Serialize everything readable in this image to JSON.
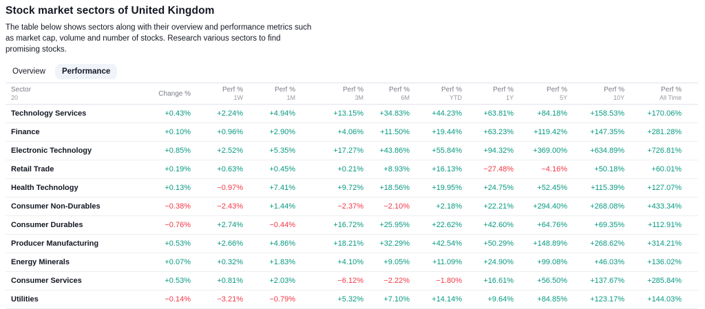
{
  "page": {
    "title": "Stock market sectors of United Kingdom",
    "description": "The table below shows sectors along with their overview and performance metrics such as market cap, volume and number of stocks. Research various sectors to find promising stocks."
  },
  "tabs": [
    {
      "label": "Overview",
      "active": false
    },
    {
      "label": "Performance",
      "active": true
    }
  ],
  "colors": {
    "positive": "#089981",
    "negative": "#f23645",
    "tab_active_bg": "#f0f3fa",
    "separator": "#e0e3eb"
  },
  "table": {
    "sector_header": {
      "label": "Sector",
      "count": "20"
    },
    "columns": [
      {
        "label": "Change %",
        "sub": ""
      },
      {
        "label": "Perf %",
        "sub": "1W"
      },
      {
        "label": "Perf %",
        "sub": "1M"
      },
      {
        "label": "Perf %",
        "sub": "3M"
      },
      {
        "label": "Perf %",
        "sub": "6M"
      },
      {
        "label": "Perf %",
        "sub": "YTD"
      },
      {
        "label": "Perf %",
        "sub": "1Y"
      },
      {
        "label": "Perf %",
        "sub": "5Y"
      },
      {
        "label": "Perf %",
        "sub": "10Y"
      },
      {
        "label": "Perf %",
        "sub": "All Time"
      }
    ],
    "rows": [
      {
        "sector": "Technology Services",
        "values": [
          "+0.43%",
          "+2.24%",
          "+4.94%",
          "+13.15%",
          "+34.83%",
          "+44.23%",
          "+63.81%",
          "+84.18%",
          "+158.53%",
          "+170.06%"
        ]
      },
      {
        "sector": "Finance",
        "values": [
          "+0.10%",
          "+0.96%",
          "+2.90%",
          "+4.06%",
          "+11.50%",
          "+19.44%",
          "+63.23%",
          "+119.42%",
          "+147.35%",
          "+281.28%"
        ]
      },
      {
        "sector": "Electronic Technology",
        "values": [
          "+0.85%",
          "+2.52%",
          "+5.35%",
          "+17.27%",
          "+43.86%",
          "+55.84%",
          "+94.32%",
          "+369.00%",
          "+634.89%",
          "+726.81%"
        ]
      },
      {
        "sector": "Retail Trade",
        "values": [
          "+0.19%",
          "+0.63%",
          "+0.45%",
          "+0.21%",
          "+8.93%",
          "+16.13%",
          "−27.48%",
          "−4.16%",
          "+50.18%",
          "+60.01%"
        ]
      },
      {
        "sector": "Health Technology",
        "values": [
          "+0.13%",
          "−0.97%",
          "+7.41%",
          "+9.72%",
          "+18.56%",
          "+19.95%",
          "+24.75%",
          "+52.45%",
          "+115.39%",
          "+127.07%"
        ]
      },
      {
        "sector": "Consumer Non-Durables",
        "values": [
          "−0.38%",
          "−2.43%",
          "+1.44%",
          "−2.37%",
          "−2.10%",
          "+2.18%",
          "+22.21%",
          "+294.40%",
          "+268.08%",
          "+433.34%"
        ]
      },
      {
        "sector": "Consumer Durables",
        "values": [
          "−0.76%",
          "+2.74%",
          "−0.44%",
          "+16.72%",
          "+25.95%",
          "+22.62%",
          "+42.60%",
          "+64.76%",
          "+69.35%",
          "+112.91%"
        ]
      },
      {
        "sector": "Producer Manufacturing",
        "values": [
          "+0.53%",
          "+2.66%",
          "+4.86%",
          "+18.21%",
          "+32.29%",
          "+42.54%",
          "+50.29%",
          "+148.89%",
          "+268.62%",
          "+314.21%"
        ]
      },
      {
        "sector": "Energy Minerals",
        "values": [
          "+0.07%",
          "+0.32%",
          "+1.83%",
          "+4.10%",
          "+9.05%",
          "+11.09%",
          "+24.90%",
          "+99.08%",
          "+46.03%",
          "+136.02%"
        ]
      },
      {
        "sector": "Consumer Services",
        "values": [
          "+0.53%",
          "+0.81%",
          "+2.03%",
          "−6.12%",
          "−2.22%",
          "−1.80%",
          "+16.61%",
          "+56.50%",
          "+137.67%",
          "+285.84%"
        ]
      },
      {
        "sector": "Utilities",
        "values": [
          "−0.14%",
          "−3.21%",
          "−0.79%",
          "+5.32%",
          "+7.10%",
          "+14.14%",
          "+9.64%",
          "+84.85%",
          "+123.17%",
          "+144.03%"
        ]
      }
    ]
  }
}
